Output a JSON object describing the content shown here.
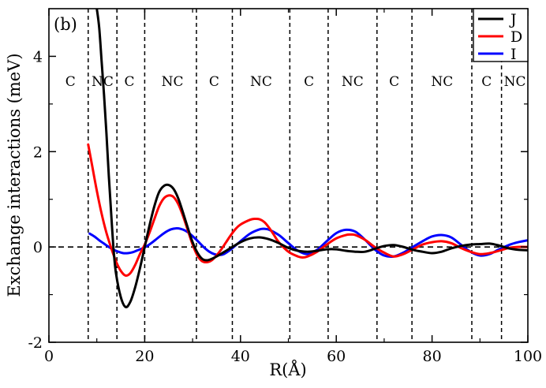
{
  "chart_data": {
    "type": "line",
    "panel_label": "(b)",
    "xlabel": "R(Å)",
    "ylabel": "Exchange interactions (meV)",
    "xlim": [
      0,
      100
    ],
    "ylim": [
      -2,
      5
    ],
    "xticks": [
      0,
      20,
      40,
      60,
      80,
      100
    ],
    "yticks": [
      -2,
      0,
      2,
      4
    ],
    "grid": false,
    "legend_position": "top-right",
    "zero_line": true,
    "region_boundaries": [
      8.2,
      14.2,
      20,
      30.8,
      38.3,
      50.3,
      58.3,
      68.5,
      75.8,
      88.3,
      94.5
    ],
    "regions": [
      {
        "label": "C",
        "x": 4.5
      },
      {
        "label": "NC",
        "x": 11.2
      },
      {
        "label": "C",
        "x": 16.8
      },
      {
        "label": "NC",
        "x": 25.8
      },
      {
        "label": "C",
        "x": 34.5
      },
      {
        "label": "NC",
        "x": 44.3
      },
      {
        "label": "C",
        "x": 54.3
      },
      {
        "label": "NC",
        "x": 63.4
      },
      {
        "label": "C",
        "x": 72.1
      },
      {
        "label": "NC",
        "x": 82.1
      },
      {
        "label": "C",
        "x": 91.4
      },
      {
        "label": "NC",
        "x": 97.3
      }
    ],
    "series": [
      {
        "name": "J",
        "color": "#000000",
        "x": [
          10,
          10.5,
          11,
          11.5,
          12,
          12.5,
          13,
          13.5,
          14,
          15,
          16,
          17,
          18,
          19,
          20,
          21,
          22,
          23,
          24,
          25,
          26,
          27,
          28,
          29,
          30,
          31,
          32,
          33,
          34,
          35,
          36,
          37,
          38,
          40,
          42,
          44,
          46,
          48,
          50,
          52,
          54,
          56,
          58,
          60,
          62,
          64,
          66,
          68,
          70,
          72,
          74,
          76,
          78,
          80,
          82,
          84,
          86,
          88,
          90,
          92,
          94,
          96,
          98,
          100
        ],
        "y": [
          5.0,
          4.6,
          3.9,
          3.2,
          2.4,
          1.5,
          0.7,
          -0.05,
          -0.55,
          -1.05,
          -1.26,
          -1.15,
          -0.85,
          -0.45,
          0.0,
          0.45,
          0.85,
          1.15,
          1.28,
          1.3,
          1.22,
          1.02,
          0.72,
          0.4,
          0.1,
          -0.12,
          -0.25,
          -0.28,
          -0.25,
          -0.2,
          -0.14,
          -0.08,
          -0.02,
          0.1,
          0.18,
          0.2,
          0.16,
          0.08,
          -0.02,
          -0.08,
          -0.1,
          -0.08,
          -0.05,
          -0.05,
          -0.08,
          -0.1,
          -0.1,
          -0.04,
          0.02,
          0.04,
          0.0,
          -0.06,
          -0.1,
          -0.13,
          -0.1,
          -0.03,
          0.02,
          0.05,
          0.06,
          0.07,
          0.03,
          -0.03,
          -0.06,
          -0.07
        ]
      },
      {
        "name": "D",
        "color": "#ff0000",
        "x": [
          8.2,
          9,
          10,
          11,
          12,
          13,
          14,
          15,
          16,
          17,
          18,
          19,
          20,
          21,
          22,
          23,
          24,
          25,
          26,
          27,
          28,
          29,
          30,
          31,
          32,
          33,
          34,
          35,
          36,
          37,
          38,
          39,
          40,
          42,
          43,
          44,
          45,
          46,
          47,
          48,
          50,
          52,
          53,
          54,
          56,
          58,
          60,
          62,
          63,
          64,
          66,
          68,
          70,
          72,
          74,
          76,
          78,
          80,
          82,
          84,
          86,
          88,
          90,
          92,
          94,
          96,
          98,
          100
        ],
        "y": [
          2.15,
          1.72,
          1.18,
          0.7,
          0.3,
          -0.02,
          -0.3,
          -0.5,
          -0.6,
          -0.55,
          -0.38,
          -0.15,
          0.05,
          0.3,
          0.58,
          0.85,
          1.02,
          1.08,
          1.05,
          0.9,
          0.65,
          0.35,
          0.05,
          -0.18,
          -0.3,
          -0.32,
          -0.28,
          -0.18,
          -0.05,
          0.1,
          0.25,
          0.38,
          0.47,
          0.57,
          0.59,
          0.58,
          0.52,
          0.4,
          0.25,
          0.1,
          -0.1,
          -0.2,
          -0.22,
          -0.2,
          -0.1,
          0.05,
          0.18,
          0.25,
          0.26,
          0.25,
          0.15,
          0.0,
          -0.12,
          -0.2,
          -0.15,
          -0.05,
          0.05,
          0.1,
          0.12,
          0.08,
          -0.02,
          -0.1,
          -0.15,
          -0.13,
          -0.08,
          -0.02,
          0.0,
          0.0
        ]
      },
      {
        "name": "I",
        "color": "#0000ff",
        "x": [
          8.5,
          9.5,
          10.5,
          11.5,
          12.5,
          13.5,
          14.5,
          15.5,
          16.5,
          17.5,
          18.5,
          19.5,
          20.5,
          21.5,
          22.5,
          23.5,
          24.5,
          25.5,
          26.5,
          27.5,
          28.5,
          29.5,
          30.5,
          31.5,
          32.5,
          33.5,
          34.5,
          35.5,
          36.5,
          38,
          40,
          42,
          44,
          45,
          46,
          48,
          50,
          52,
          54,
          56,
          58,
          60,
          62,
          64,
          66,
          68,
          70,
          72,
          74,
          76,
          78,
          80,
          82,
          84,
          86,
          88,
          90,
          92,
          94,
          96,
          98,
          100
        ],
        "y": [
          0.28,
          0.22,
          0.14,
          0.07,
          0.0,
          -0.06,
          -0.1,
          -0.13,
          -0.13,
          -0.11,
          -0.07,
          -0.03,
          0.02,
          0.09,
          0.17,
          0.25,
          0.32,
          0.37,
          0.39,
          0.38,
          0.34,
          0.27,
          0.18,
          0.08,
          -0.02,
          -0.1,
          -0.15,
          -0.17,
          -0.15,
          -0.05,
          0.12,
          0.28,
          0.37,
          0.38,
          0.36,
          0.25,
          0.08,
          -0.08,
          -0.15,
          -0.06,
          0.12,
          0.29,
          0.36,
          0.32,
          0.15,
          -0.05,
          -0.18,
          -0.2,
          -0.12,
          0.0,
          0.12,
          0.22,
          0.25,
          0.2,
          0.05,
          -0.1,
          -0.18,
          -0.15,
          -0.05,
          0.04,
          0.1,
          0.14
        ]
      }
    ]
  }
}
